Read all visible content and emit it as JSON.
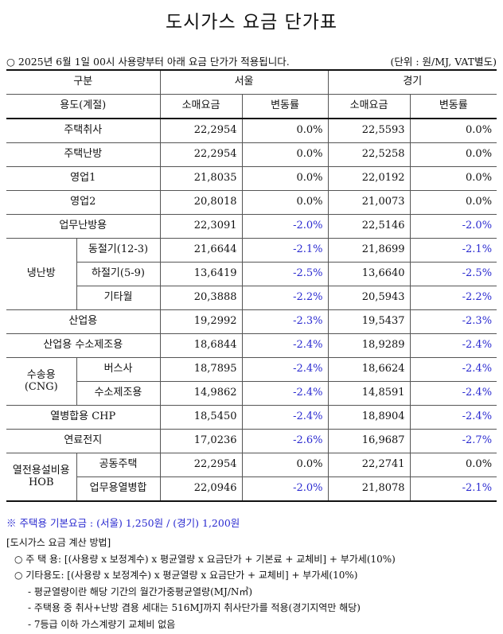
{
  "title": "도시가스 요금 단가표",
  "notice": {
    "text": "○ 2025년 6월 1일 00시 사용량부터 아래 요금 단가가 적용됩니다.",
    "unit": "(단위 : 원/MJ, VAT별도)"
  },
  "header": {
    "category": "구분",
    "seoul": "서울",
    "gyeonggi": "경기",
    "usage": "용도(계절)",
    "retail_price": "소매요금",
    "change_rate": "변동률"
  },
  "rows": {
    "residential_cooking": {
      "label": "주택취사",
      "seoul_price": "22,2954",
      "seoul_change": "0.0%",
      "gg_price": "22,5593",
      "gg_change": "0.0%"
    },
    "residential_heating": {
      "label": "주택난방",
      "seoul_price": "22,2954",
      "seoul_change": "0.0%",
      "gg_price": "22,5258",
      "gg_change": "0.0%"
    },
    "business1": {
      "label": "영업1",
      "seoul_price": "21,8035",
      "seoul_change": "0.0%",
      "gg_price": "22,0192",
      "gg_change": "0.0%"
    },
    "business2": {
      "label": "영업2",
      "seoul_price": "20,8018",
      "seoul_change": "0.0%",
      "gg_price": "21,0073",
      "gg_change": "0.0%"
    },
    "office_heating": {
      "label": "업무난방용",
      "seoul_price": "22,3091",
      "seoul_change": "-2.0%",
      "gg_price": "22,5146",
      "gg_change": "-2.0%"
    },
    "cooling_heating": {
      "group": "냉난방",
      "winter": {
        "label": "동절기(12-3)",
        "seoul_price": "21,6644",
        "seoul_change": "-2.1%",
        "gg_price": "21,8699",
        "gg_change": "-2.1%"
      },
      "summer": {
        "label": "하절기(5-9)",
        "seoul_price": "13,6419",
        "seoul_change": "-2.5%",
        "gg_price": "13,6640",
        "gg_change": "-2.5%"
      },
      "other": {
        "label": "기타월",
        "seoul_price": "20,3888",
        "seoul_change": "-2.2%",
        "gg_price": "20,5943",
        "gg_change": "-2.2%"
      }
    },
    "industrial": {
      "label": "산업용",
      "seoul_price": "19,2992",
      "seoul_change": "-2.3%",
      "gg_price": "19,5437",
      "gg_change": "-2.3%"
    },
    "industrial_hydrogen": {
      "label": "산업용 수소제조용",
      "seoul_price": "18,6844",
      "seoul_change": "-2.4%",
      "gg_price": "18,9289",
      "gg_change": "-2.4%"
    },
    "transport": {
      "group_line1": "수송용",
      "group_line2": "(CNG)",
      "bus": {
        "label": "버스사",
        "seoul_price": "18,7895",
        "seoul_change": "-2.4%",
        "gg_price": "18,6624",
        "gg_change": "-2.4%"
      },
      "hydrogen": {
        "label": "수소제조용",
        "seoul_price": "14,9862",
        "seoul_change": "-2.4%",
        "gg_price": "14,8591",
        "gg_change": "-2.4%"
      }
    },
    "chp": {
      "label": "열병합용 CHP",
      "seoul_price": "18,5450",
      "seoul_change": "-2.4%",
      "gg_price": "18,8904",
      "gg_change": "-2.4%"
    },
    "fuel_cell": {
      "label": "연료전지",
      "seoul_price": "17,0236",
      "seoul_change": "-2.6%",
      "gg_price": "16,9687",
      "gg_change": "-2.7%"
    },
    "heat_power": {
      "group_line1": "열전용설비용",
      "group_line2": "HOB",
      "apartment": {
        "label": "공동주택",
        "seoul_price": "22,2954",
        "seoul_change": "0.0%",
        "gg_price": "22,2741",
        "gg_change": "0.0%"
      },
      "office_chp": {
        "label": "업무용열병합",
        "seoul_price": "22,0946",
        "seoul_change": "-2.0%",
        "gg_price": "21,8078",
        "gg_change": "-2.1%"
      }
    }
  },
  "footnote": "※ 주택용 기본요금 : (서울) 1,250원 / (경기) 1,200원",
  "calc": {
    "heading": "[도시가스 요금 계산 방법]",
    "residential": "○ 주 택 용: [(사용량 x 보정계수) x 평균열량 x 요금단가 + 기본료 + 교체비] + 부가세(10%)",
    "other": "○ 기타용도: [(사용량 x 보정계수) x 평균열량 x 요금단가 + 교체비] + 부가세(10%)",
    "note1": "- 평균열량이란 해당 기간의 월간가중평균열량(MJ/N㎥)",
    "note2": "- 주택용 중 취사+난방 겸용 세대는 516MJ까지 취사단가를 적용(경기지역만 해당)",
    "note3": "- 7등급 이하 가스계량기 교체비 없음"
  },
  "colors": {
    "negative": "#2a2ad0",
    "text": "#111111"
  }
}
